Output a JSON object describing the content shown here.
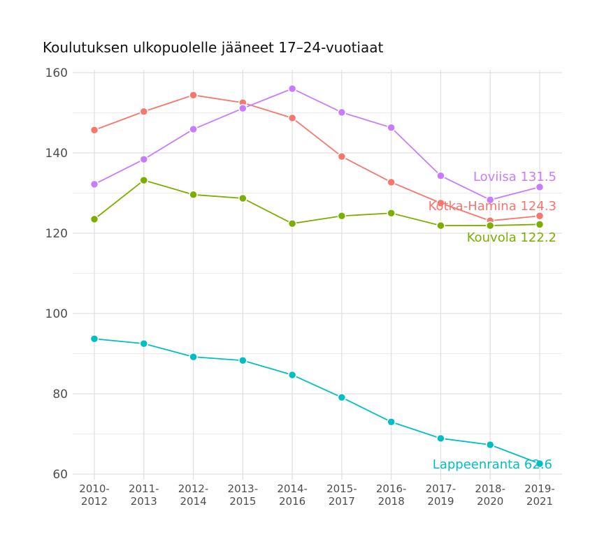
{
  "chart_data": {
    "type": "line",
    "title": "Koulutuksen ulkopuolelle jääneet 17–24-vuotiaat",
    "xlabel": "",
    "ylabel": "",
    "categories": [
      "2010-\n2012",
      "2011-\n2013",
      "2012-\n2014",
      "2013-\n2015",
      "2014-\n2016",
      "2015-\n2017",
      "2016-\n2018",
      "2017-\n2019",
      "2018-\n2020",
      "2019-\n2021"
    ],
    "ylim": [
      60,
      160
    ],
    "yticks": [
      60,
      80,
      100,
      120,
      140,
      160
    ],
    "grid": true,
    "legend": "none (direct end labels)",
    "series": [
      {
        "name": "Kotka-Hamina",
        "end_label": "Kotka-Hamina 124.3",
        "color": "#F8766D",
        "values": [
          145.7,
          150.3,
          154.4,
          152.5,
          148.7,
          139.1,
          132.7,
          127.5,
          123.1,
          124.3
        ]
      },
      {
        "name": "Loviisa",
        "end_label": "Loviisa 131.5",
        "color": "#C77CFF",
        "values": [
          132.2,
          138.4,
          145.9,
          151.1,
          156.0,
          150.1,
          146.3,
          134.3,
          128.3,
          131.5
        ]
      },
      {
        "name": "Kouvola",
        "end_label": "Kouvola 122.2",
        "color": "#7CAE00",
        "values": [
          123.5,
          133.2,
          129.6,
          128.7,
          122.4,
          124.3,
          125.0,
          121.9,
          121.9,
          122.2
        ]
      },
      {
        "name": "Lappeenranta",
        "end_label": "Lappeenranta 62.6",
        "color": "#00BFC4",
        "values": [
          93.7,
          92.5,
          89.2,
          88.3,
          84.7,
          79.1,
          73.0,
          68.9,
          67.3,
          62.6
        ]
      }
    ]
  }
}
